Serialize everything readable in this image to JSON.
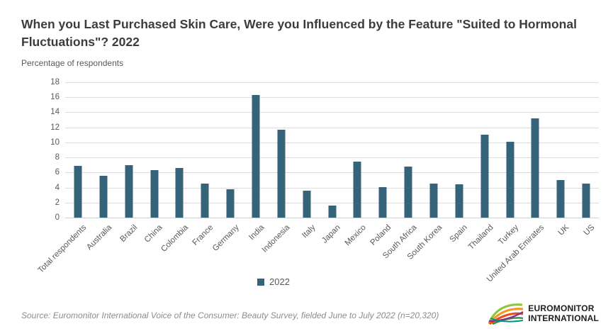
{
  "header": {
    "title": "When you Last Purchased Skin Care, Were you Influenced by the Feature \"Suited to Hormonal Fluctuations\"? 2022",
    "subtitle": "Percentage of respondents"
  },
  "chart_data": {
    "type": "bar",
    "title": "When you Last Purchased Skin Care, Were you Influenced by the Feature \"Suited to Hormonal Fluctuations\"? 2022",
    "subtitle": "Percentage of respondents",
    "xlabel": "",
    "ylabel": "Percentage of respondents",
    "ylim": [
      0,
      18
    ],
    "ytick_step": 2,
    "yticks": [
      18,
      16,
      14,
      12,
      10,
      8,
      6,
      4,
      2,
      0
    ],
    "grid": "horizontal",
    "legend_position": "bottom-center",
    "categories": [
      "Total respondents",
      "Australia",
      "Brazil",
      "China",
      "Colombia",
      "France",
      "Germany",
      "India",
      "Indonesia",
      "Italy",
      "Japan",
      "Mexico",
      "Poland",
      "South Africa",
      "South Korea",
      "Spain",
      "Thailand",
      "Turkey",
      "United Arab Emirates",
      "UK",
      "US"
    ],
    "series": [
      {
        "name": "2022",
        "values": [
          6.9,
          5.6,
          7.0,
          6.3,
          6.6,
          4.5,
          3.8,
          16.3,
          11.7,
          3.6,
          1.6,
          7.4,
          4.1,
          6.8,
          4.5,
          4.4,
          11.0,
          10.1,
          13.2,
          5.0,
          4.5
        ]
      }
    ]
  },
  "legend": {
    "label": "2022"
  },
  "colors": {
    "bar": "#35637a",
    "gridline": "#dcdcdc",
    "axis_text": "#595959",
    "title_text": "#3c3c3c",
    "source_text": "#8c8c8c"
  },
  "footer": {
    "source": "Source: Euromonitor International Voice of the Consumer: Beauty Survey, fielded June to July 2022 (n=20,320)"
  },
  "logo": {
    "line1": "EUROMONITOR",
    "line2": "INTERNATIONAL",
    "arc_colors": [
      "#3e8f3e",
      "#8cc63f",
      "#f7941d",
      "#e94e1b",
      "#8e2e87",
      "#00948f"
    ]
  }
}
